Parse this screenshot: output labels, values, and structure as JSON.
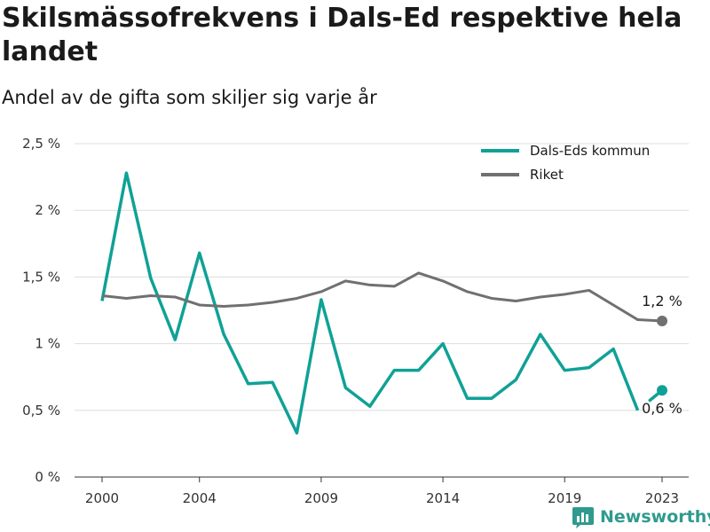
{
  "title": "Skilsmässofrekvens i Dals-Ed respektive hela landet",
  "subtitle": "Andel av de gifta som skiljer sig varje år",
  "brand": "Newsworthy",
  "chart_data": {
    "type": "line",
    "x": [
      2000,
      2001,
      2002,
      2003,
      2004,
      2005,
      2006,
      2007,
      2008,
      2009,
      2010,
      2011,
      2012,
      2013,
      2014,
      2015,
      2016,
      2017,
      2018,
      2019,
      2020,
      2021,
      2022,
      2023
    ],
    "x_tick_labels": [
      "2000",
      "2004",
      "2009",
      "2014",
      "2019",
      "2023"
    ],
    "y_ticks": [
      0,
      0.5,
      1,
      1.5,
      2,
      2.5
    ],
    "y_tick_labels": [
      "0 %",
      "0,5 %",
      "1 %",
      "1,5 %",
      "2 %",
      "2,5 %"
    ],
    "ylim": [
      0,
      2.5
    ],
    "xlim": [
      2000,
      2023
    ],
    "grid": true,
    "legend_position": "top-right",
    "series": [
      {
        "name": "Dals-Eds kommun",
        "color": "#10a196",
        "values": [
          1.32,
          2.28,
          1.49,
          1.03,
          1.68,
          1.07,
          0.7,
          0.71,
          0.33,
          1.33,
          0.67,
          0.53,
          0.8,
          0.8,
          1.0,
          0.59,
          0.59,
          0.73,
          1.07,
          0.8,
          0.82,
          0.96,
          0.5,
          0.65
        ],
        "end_label": "0,6 %"
      },
      {
        "name": "Riket",
        "color": "#707070",
        "values": [
          1.36,
          1.34,
          1.36,
          1.35,
          1.29,
          1.28,
          1.29,
          1.31,
          1.34,
          1.39,
          1.47,
          1.44,
          1.43,
          1.53,
          1.47,
          1.39,
          1.34,
          1.32,
          1.35,
          1.37,
          1.4,
          1.29,
          1.18,
          1.17
        ],
        "end_label": "1,2 %"
      }
    ]
  }
}
